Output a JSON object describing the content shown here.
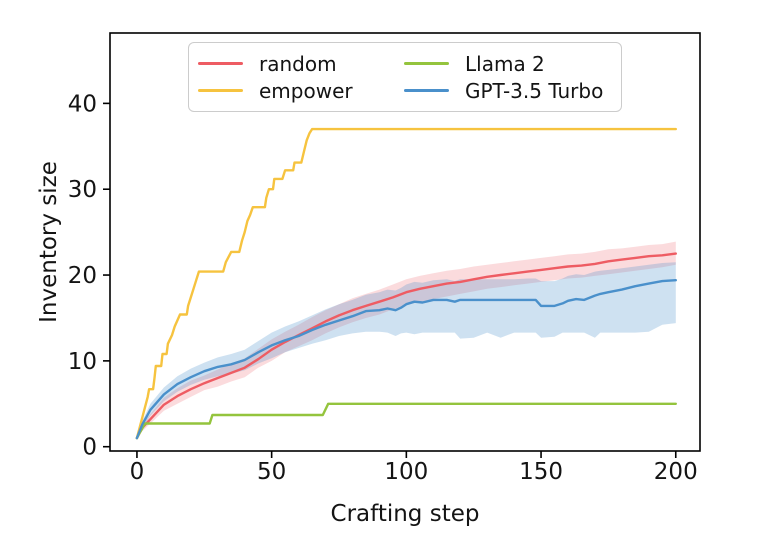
{
  "axes": {
    "xlabel": "Crafting step",
    "ylabel": "Inventory size",
    "xticks": [
      "0",
      "50",
      "100",
      "150",
      "200"
    ],
    "xtick_values": [
      0,
      50,
      100,
      150,
      200
    ],
    "yticks": [
      "0",
      "10",
      "20",
      "30",
      "40"
    ],
    "ytick_values": [
      0,
      10,
      20,
      30,
      40
    ],
    "xlim": [
      -10,
      209
    ],
    "ylim": [
      -0.5,
      48.2
    ],
    "spine_color": "#000000",
    "tick_color": "#000000",
    "text_color": "#141414"
  },
  "legend": {
    "items": [
      {
        "label": "random",
        "color": "#ee5c63"
      },
      {
        "label": "empower",
        "color": "#f6c33f"
      },
      {
        "label": "Llama 2",
        "color": "#94c43d"
      },
      {
        "label": "GPT-3.5 Turbo",
        "color": "#4a90cb"
      }
    ],
    "position": "upper center",
    "columns": 2
  },
  "chart_data": {
    "type": "line",
    "title": "",
    "xlabel": "Crafting step",
    "ylabel": "Inventory size",
    "xlim": [
      -10,
      209
    ],
    "ylim": [
      -0.5,
      48.2
    ],
    "grid": false,
    "legend_position": "upper center inside axes",
    "series": [
      {
        "name": "random",
        "color": "#ee5c63",
        "band_fill": "rgba(238,92,99,0.22)",
        "x": [
          0,
          2,
          5,
          10,
          15,
          20,
          25,
          30,
          35,
          40,
          45,
          50,
          55,
          60,
          65,
          70,
          75,
          80,
          85,
          90,
          95,
          100,
          105,
          110,
          115,
          120,
          125,
          130,
          135,
          140,
          145,
          150,
          155,
          160,
          165,
          170,
          175,
          180,
          185,
          190,
          195,
          200
        ],
        "y": [
          1,
          2.2,
          3.2,
          4.9,
          5.9,
          6.7,
          7.4,
          8.0,
          8.6,
          9.2,
          10.2,
          11.3,
          12.2,
          13.0,
          13.8,
          14.6,
          15.3,
          15.9,
          16.4,
          16.9,
          17.4,
          18.0,
          18.4,
          18.7,
          19.0,
          19.2,
          19.5,
          19.8,
          20.0,
          20.2,
          20.4,
          20.6,
          20.8,
          21.0,
          21.1,
          21.3,
          21.6,
          21.8,
          22.0,
          22.2,
          22.3,
          22.5
        ],
        "band_lo": [
          1,
          1.8,
          2.7,
          4.2,
          5.0,
          5.8,
          6.6,
          7.0,
          7.6,
          8.1,
          9.2,
          10.0,
          11.0,
          11.7,
          12.4,
          13.2,
          13.9,
          14.5,
          15.0,
          15.4,
          16.0,
          16.5,
          16.9,
          17.2,
          17.5,
          17.8,
          18.1,
          18.4,
          18.6,
          18.8,
          19.0,
          19.2,
          19.4,
          19.6,
          19.7,
          19.9,
          20.1,
          20.3,
          20.5,
          20.7,
          20.9,
          21.2
        ],
        "band_hi": [
          1,
          2.6,
          3.8,
          5.7,
          6.8,
          7.7,
          8.3,
          9.0,
          9.7,
          10.3,
          11.4,
          12.5,
          13.4,
          14.2,
          15.1,
          15.9,
          16.6,
          17.3,
          17.8,
          18.3,
          18.9,
          19.5,
          19.9,
          20.2,
          20.5,
          20.7,
          21.0,
          21.2,
          21.4,
          21.6,
          21.8,
          22.0,
          22.2,
          22.4,
          22.5,
          22.7,
          23.0,
          23.1,
          23.3,
          23.5,
          23.6,
          23.9
        ]
      },
      {
        "name": "empower",
        "color": "#f6c33f",
        "x": [
          0,
          1,
          2,
          3,
          4,
          4.5,
          6,
          6.5,
          7,
          9,
          9.5,
          11,
          11.5,
          13,
          14,
          16,
          18.5,
          19,
          20,
          21,
          22,
          23,
          32,
          33,
          35,
          38,
          39,
          40,
          41,
          42,
          43,
          47.5,
          48,
          49,
          50.5,
          51,
          54,
          55,
          58,
          58.5,
          61,
          62,
          63,
          64,
          65,
          200
        ],
        "y": [
          1,
          2.2,
          3.4,
          4.6,
          5.8,
          6.7,
          6.7,
          8,
          9.4,
          9.4,
          10.8,
          10.8,
          12,
          13,
          14,
          15.4,
          15.4,
          16.4,
          17.4,
          18.4,
          19.4,
          20.4,
          20.4,
          21.5,
          22.7,
          22.7,
          24,
          25,
          26.3,
          27,
          27.9,
          27.9,
          29,
          30,
          30,
          31.2,
          31.2,
          32.2,
          32.2,
          33.1,
          33.1,
          34.4,
          35.7,
          36.5,
          37,
          37
        ]
      },
      {
        "name": "Llama 2",
        "color": "#94c43d",
        "x": [
          0,
          1,
          3,
          27,
          28,
          69,
          71,
          200
        ],
        "y": [
          1,
          1.6,
          2.7,
          2.7,
          3.7,
          3.7,
          5,
          5
        ]
      },
      {
        "name": "GPT-3.5 Turbo",
        "color": "#4a90cb",
        "band_fill": "rgba(74,144,203,0.27)",
        "x": [
          0,
          2,
          5,
          10,
          15,
          20,
          25,
          30,
          35,
          40,
          45,
          50,
          55,
          60,
          65,
          70,
          75,
          80,
          85,
          90,
          93,
          96,
          98,
          100,
          103,
          106,
          110,
          115,
          118,
          120,
          125,
          130,
          135,
          140,
          145,
          148,
          150,
          155,
          158,
          160,
          163,
          166,
          170,
          172,
          175,
          180,
          185,
          190,
          195,
          200
        ],
        "y": [
          1,
          2.6,
          4.3,
          6.1,
          7.3,
          8.1,
          8.8,
          9.3,
          9.6,
          10.1,
          11.0,
          11.8,
          12.4,
          12.9,
          13.6,
          14.2,
          14.7,
          15.2,
          15.8,
          15.9,
          16.1,
          15.9,
          16.2,
          16.6,
          16.9,
          16.8,
          17.1,
          17.1,
          16.9,
          17.1,
          17.1,
          17.1,
          17.1,
          17.1,
          17.1,
          17.1,
          16.4,
          16.4,
          16.7,
          17.0,
          17.2,
          17.1,
          17.6,
          17.8,
          18.0,
          18.3,
          18.7,
          19.0,
          19.3,
          19.4
        ],
        "band_lo": [
          1,
          2.2,
          3.6,
          5.3,
          6.4,
          7.2,
          7.8,
          8.2,
          8.5,
          8.9,
          9.7,
          10.3,
          11.0,
          11.5,
          12.0,
          12.4,
          12.9,
          13.2,
          13.4,
          13.4,
          13.3,
          12.9,
          13.2,
          13.3,
          13.1,
          13.3,
          13.3,
          13.3,
          13.3,
          12.6,
          12.7,
          13.3,
          12.7,
          13.3,
          13.3,
          13.3,
          12.7,
          12.8,
          13.3,
          13.3,
          13.3,
          13.3,
          12.7,
          13.3,
          13.3,
          13.3,
          13.3,
          13.4,
          14.2,
          14.4
        ],
        "band_hi": [
          1,
          3.0,
          5.0,
          6.9,
          8.2,
          9.1,
          9.8,
          10.4,
          10.8,
          11.3,
          12.3,
          13.3,
          14.0,
          14.6,
          15.3,
          16.0,
          16.6,
          17.1,
          17.7,
          18.0,
          18.3,
          18.2,
          18.5,
          18.9,
          19.2,
          19.1,
          19.4,
          19.5,
          19.3,
          19.5,
          19.5,
          19.5,
          19.5,
          19.5,
          19.6,
          19.6,
          19.3,
          19.3,
          19.6,
          19.9,
          20.1,
          20.0,
          20.4,
          20.5,
          20.6,
          20.8,
          21.0,
          21.2,
          21.4,
          21.5
        ]
      }
    ]
  }
}
